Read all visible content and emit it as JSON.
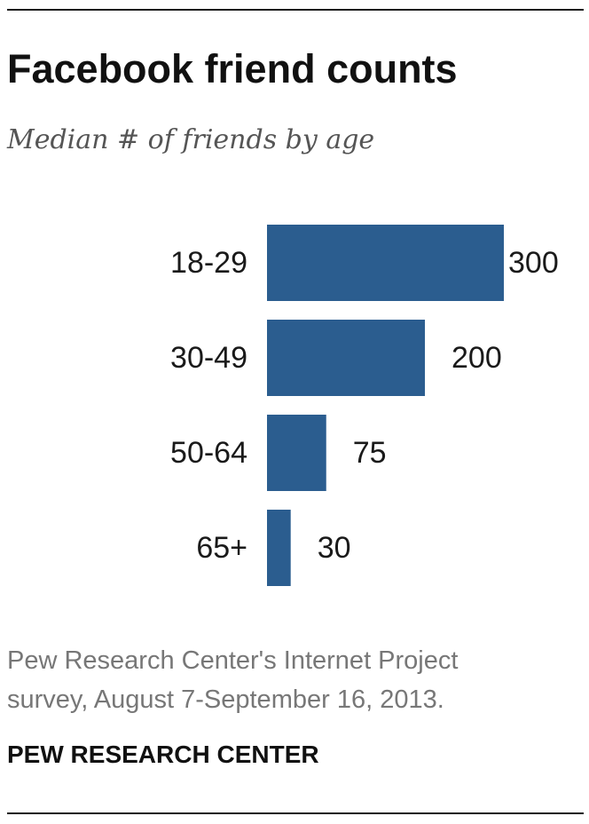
{
  "title": "Facebook friend counts",
  "subtitle": "Median # of friends by age",
  "note_line1": "Pew Research Center's Internet Project",
  "note_line2": "survey, August 7-September 16, 2013.",
  "source": "PEW RESEARCH CENTER",
  "colors": {
    "bar": "#2b5d8f",
    "text": "#1a1a1a",
    "note": "#777777",
    "subtitle": "#555555"
  },
  "chart_data": {
    "type": "bar",
    "orientation": "horizontal",
    "title": "Facebook friend counts",
    "subtitle": "Median # of friends by age",
    "categories": [
      "18-29",
      "30-49",
      "50-64",
      "65+"
    ],
    "values": [
      300,
      200,
      75,
      30
    ],
    "data_labels": [
      "300",
      "200",
      "75",
      "30"
    ],
    "xlabel": "",
    "ylabel": "",
    "xlim": [
      0,
      300
    ],
    "grid": false,
    "legend": "none"
  }
}
